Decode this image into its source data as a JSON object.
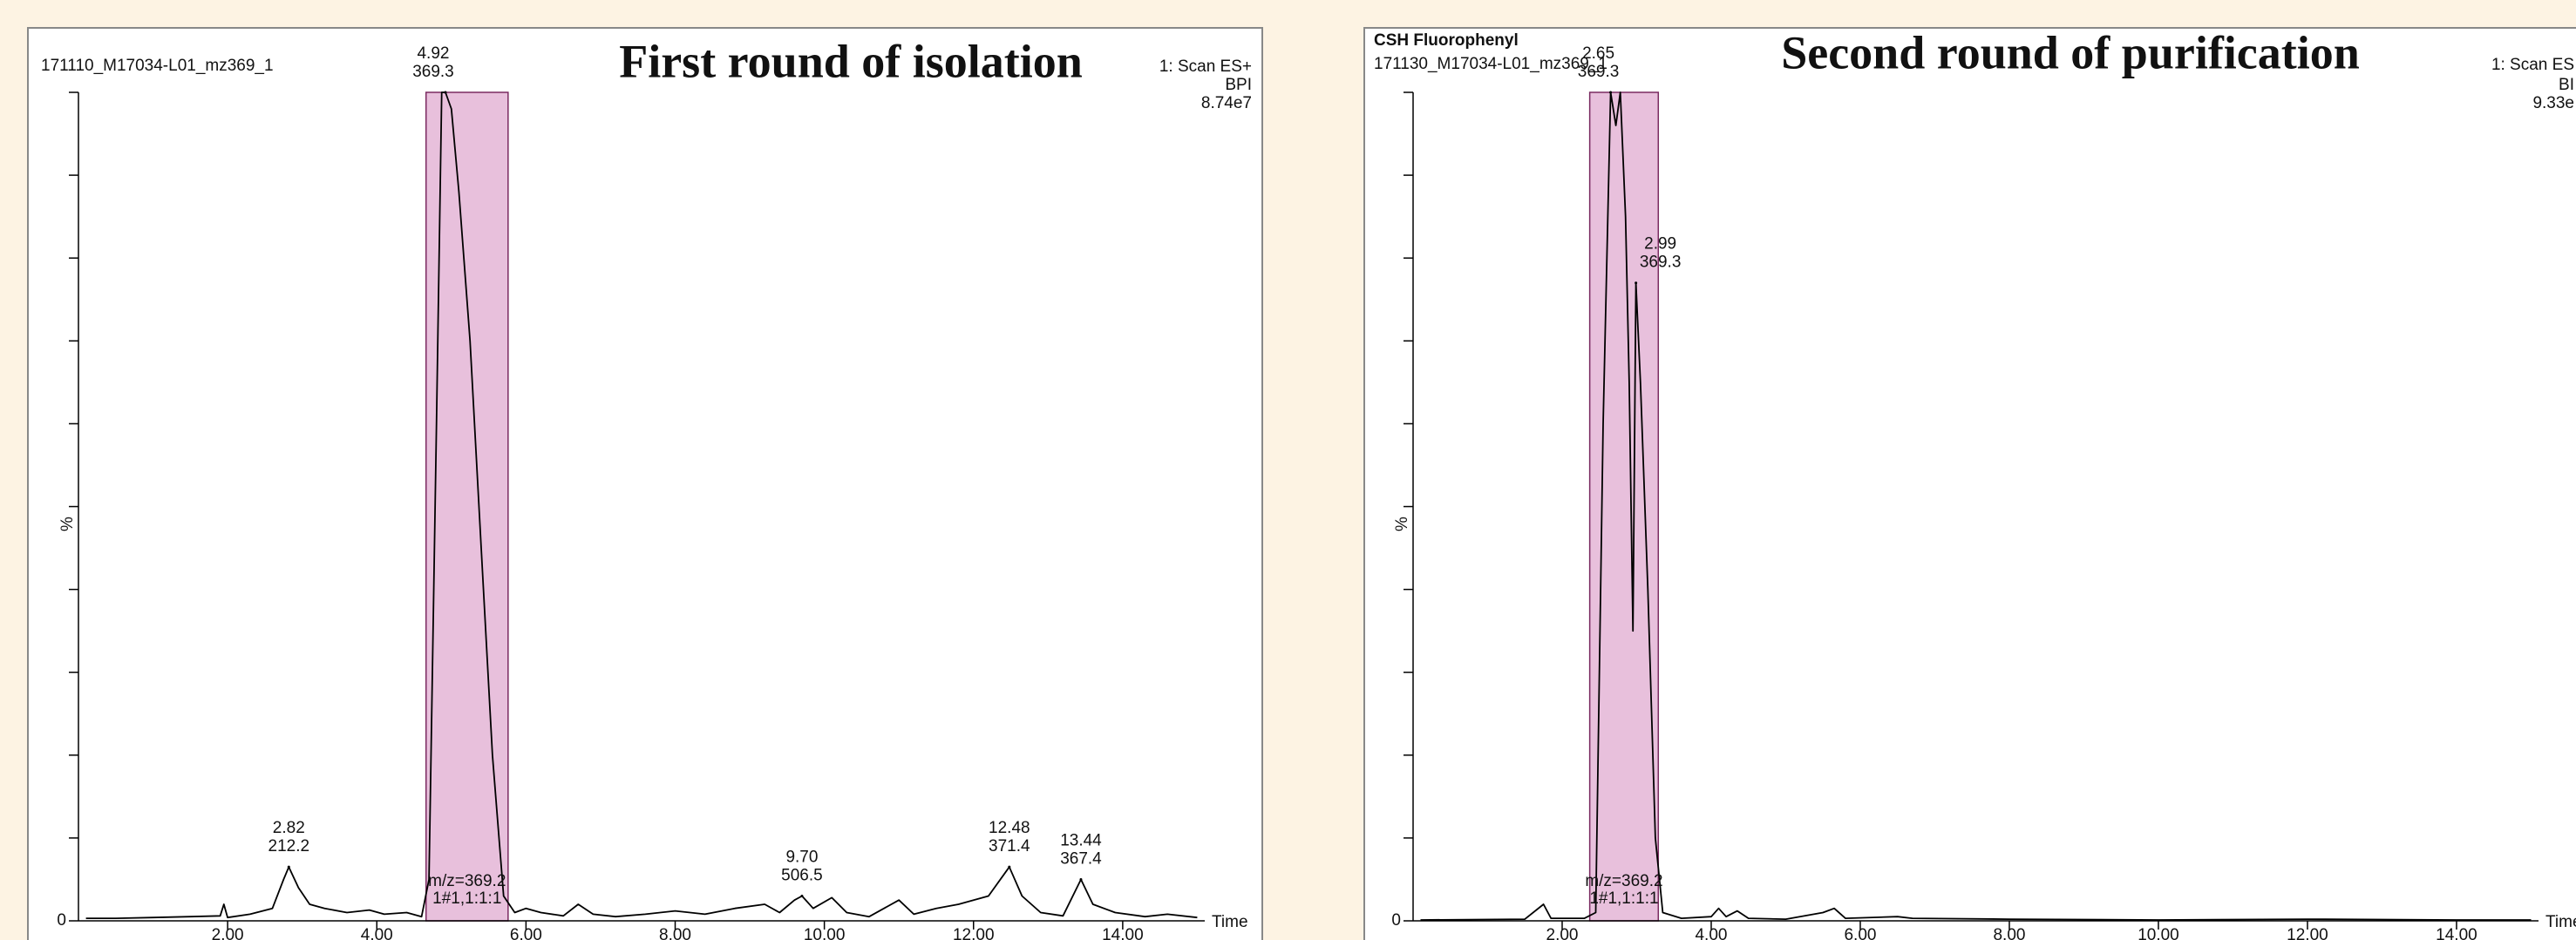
{
  "chart_data": [
    {
      "type": "line",
      "title": "First round of isolation",
      "header": [
        "171110_M17034-L01_mz369_1"
      ],
      "scan_info": [
        "1: Scan ES+",
        "BPI",
        "8.74e7"
      ],
      "ylabel": "%",
      "xlabel": "Time",
      "xlim": [
        0,
        15.1
      ],
      "ylim": [
        0,
        100
      ],
      "xticks": [
        {
          "value": 2,
          "label": "2.00"
        },
        {
          "value": 4,
          "label": "4.00"
        },
        {
          "value": 6,
          "label": "6.00"
        },
        {
          "value": 8,
          "label": "8.00"
        },
        {
          "value": 10,
          "label": "10.00"
        },
        {
          "value": 12,
          "label": "12.00"
        },
        {
          "value": 14,
          "label": "14.00"
        }
      ],
      "yticks": [
        0
      ],
      "yminor_ticks": [
        10,
        20,
        30,
        40,
        50,
        60,
        70,
        80,
        90,
        100
      ],
      "color": "#000000",
      "highlight": [
        4.66,
        5.76
      ],
      "highlight_color": "#e8c0dc",
      "highlight_label": [
        "m/z=369.2",
        "1#1,1:1:1"
      ],
      "x": [
        0.1,
        0.5,
        1.0,
        1.5,
        1.9,
        1.95,
        2.0,
        2.3,
        2.6,
        2.75,
        2.82,
        2.95,
        3.1,
        3.3,
        3.6,
        3.9,
        4.1,
        4.4,
        4.6,
        4.7,
        4.8,
        4.87,
        4.92,
        5.0,
        5.1,
        5.25,
        5.4,
        5.55,
        5.7,
        5.85,
        6.0,
        6.2,
        6.5,
        6.7,
        6.9,
        7.2,
        7.6,
        8.0,
        8.4,
        8.8,
        9.2,
        9.4,
        9.6,
        9.7,
        9.85,
        10.1,
        10.3,
        10.6,
        11.0,
        11.2,
        11.5,
        11.8,
        12.2,
        12.48,
        12.65,
        12.9,
        13.2,
        13.44,
        13.6,
        13.9,
        14.3,
        14.6,
        15.0
      ],
      "values": [
        0.3,
        0.3,
        0.4,
        0.5,
        0.6,
        2,
        0.4,
        0.8,
        1.5,
        5,
        6.5,
        4,
        2,
        1.5,
        1,
        1.3,
        0.8,
        1,
        0.5,
        5,
        60,
        100,
        100,
        98,
        88,
        70,
        45,
        20,
        3,
        1,
        1.5,
        1,
        0.6,
        2,
        0.8,
        0.5,
        0.8,
        1.2,
        0.8,
        1.5,
        2,
        1,
        2.5,
        3,
        1.5,
        2.8,
        1,
        0.5,
        2.5,
        0.8,
        1.5,
        2,
        3,
        6.5,
        3,
        1,
        0.6,
        5,
        2,
        1,
        0.5,
        0.8,
        0.4
      ],
      "annotations": [
        {
          "x": 2.82,
          "y": 6.5,
          "labels": [
            "2.82",
            "212.2"
          ]
        },
        {
          "x": 4.92,
          "y": 100,
          "labels": [
            "4.92",
            "369.3"
          ]
        },
        {
          "x": 9.7,
          "y": 3,
          "labels": [
            "9.70",
            "506.5"
          ]
        },
        {
          "x": 12.48,
          "y": 6.5,
          "labels": [
            "12.48",
            "371.4"
          ]
        },
        {
          "x": 13.44,
          "y": 5,
          "labels": [
            "13.44",
            "367.4"
          ]
        }
      ]
    },
    {
      "type": "line",
      "title": "Second round of purification",
      "header": [
        "CSH Fluorophenyl",
        "171130_M17034-L01_mz369_1"
      ],
      "scan_info": [
        "1: Scan ES",
        "BI",
        "9.33e"
      ],
      "ylabel": "%",
      "xlabel": "Time",
      "xlim": [
        0,
        15.1
      ],
      "ylim": [
        0,
        100
      ],
      "xticks": [
        {
          "value": 2,
          "label": "2.00"
        },
        {
          "value": 4,
          "label": "4.00"
        },
        {
          "value": 6,
          "label": "6.00"
        },
        {
          "value": 8,
          "label": "8.00"
        },
        {
          "value": 10,
          "label": "10.00"
        },
        {
          "value": 12,
          "label": "12.00"
        },
        {
          "value": 14,
          "label": "14.00"
        }
      ],
      "yticks": [
        0
      ],
      "yminor_ticks": [
        10,
        20,
        30,
        40,
        50,
        60,
        70,
        80,
        90,
        100
      ],
      "color": "#000000",
      "highlight": [
        2.37,
        3.29
      ],
      "highlight_color": "#e8c0dc",
      "highlight_label": [
        "m/z=369.2",
        "1#1,1:1:1"
      ],
      "x": [
        0.1,
        1.5,
        1.75,
        1.85,
        2.3,
        2.45,
        2.55,
        2.65,
        2.72,
        2.78,
        2.85,
        2.9,
        2.95,
        2.99,
        3.05,
        3.15,
        3.25,
        3.35,
        3.6,
        4.0,
        4.1,
        4.2,
        4.35,
        4.5,
        5.0,
        5.5,
        5.65,
        5.8,
        6.5,
        6.7,
        8.0,
        10.0,
        12.0,
        14.0,
        15.0
      ],
      "values": [
        0.1,
        0.2,
        2,
        0.3,
        0.3,
        1,
        60,
        100,
        96,
        100,
        85,
        65,
        35,
        77,
        65,
        40,
        10,
        1,
        0.3,
        0.5,
        1.5,
        0.5,
        1.2,
        0.3,
        0.2,
        1,
        1.5,
        0.3,
        0.5,
        0.3,
        0.2,
        0.1,
        0.2,
        0.1,
        0.1
      ],
      "annotations": [
        {
          "x": 2.65,
          "y": 100,
          "labels": [
            "2.65",
            "369.3"
          ]
        },
        {
          "x": 2.99,
          "y": 77,
          "labels": [
            "2.99",
            "369.3"
          ]
        }
      ]
    }
  ]
}
